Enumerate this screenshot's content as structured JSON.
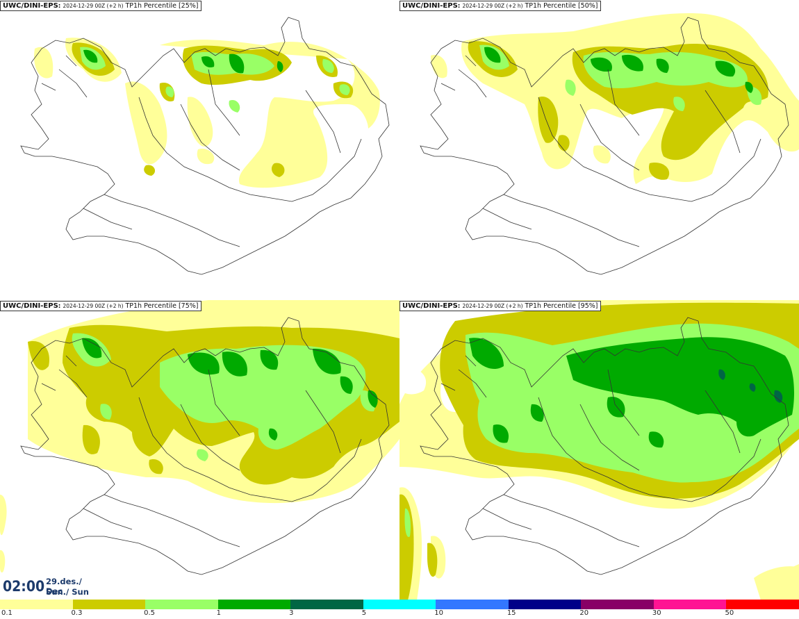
{
  "panels": [
    {
      "model": "UWC/DINI-EPS",
      "run": "2024-12-29 00Z (+2 h)",
      "param": "TP1h Percentile [25%]",
      "percentile": 25
    },
    {
      "model": "UWC/DINI-EPS",
      "run": "2024-12-29 00Z (+2 h)",
      "param": "TP1h Percentile [50%]",
      "percentile": 50
    },
    {
      "model": "UWC/DINI-EPS",
      "run": "2024-12-29 00Z (+2 h)",
      "param": "TP1h Percentile [75%]",
      "percentile": 75
    },
    {
      "model": "UWC/DINI-EPS",
      "run": "2024-12-29 00Z (+2 h)",
      "param": "TP1h Percentile [95%]",
      "percentile": 95
    }
  ],
  "time": {
    "main": "02:00",
    "date": "29.des./ Dec",
    "day": "Sun./ Sun"
  },
  "colorbar": {
    "colors": [
      "#ffff99",
      "#cccc00",
      "#99ff66",
      "#00aa00",
      "#006644",
      "#00ffff",
      "#3377ff",
      "#000088",
      "#880066",
      "#ff1493",
      "#ff0000"
    ],
    "labels": [
      "0.1",
      "0.3",
      "0.5",
      "1",
      "3",
      "5",
      "10",
      "15",
      "20",
      "30",
      "50"
    ]
  }
}
